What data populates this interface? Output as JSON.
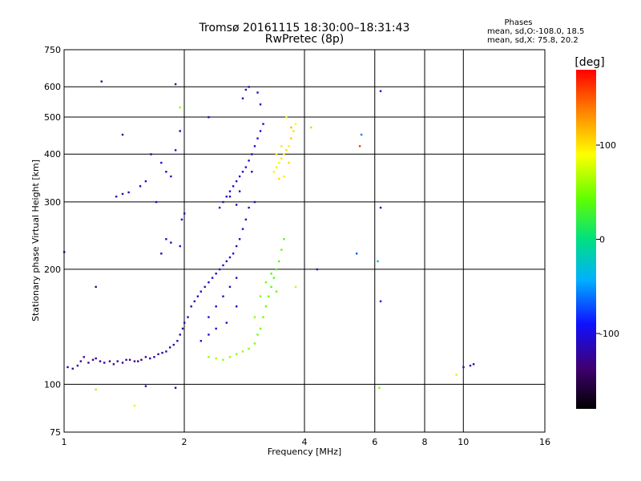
{
  "chart_data": {
    "type": "scatter",
    "title": "Tromsø 20161115 18:30:00–18:31:43",
    "subtitle": "RwPretec (8p)",
    "xlabel": "Frequency [MHz]",
    "ylabel": "Stationary phase Virtual Height [km]",
    "x_scale": "log",
    "y_scale": "log",
    "xlim": [
      1,
      16
    ],
    "ylim": [
      75,
      750
    ],
    "x_ticks": [
      1,
      2,
      4,
      6,
      8,
      10,
      16
    ],
    "x_tick_labels": [
      "1",
      "2",
      "4",
      "6",
      "8",
      "10",
      "16"
    ],
    "y_ticks": [
      75,
      100,
      200,
      300,
      400,
      500,
      600,
      750
    ],
    "y_tick_labels": [
      "75",
      "100",
      "200",
      "300",
      "400",
      "500",
      "600",
      "750"
    ],
    "grid": true,
    "info": {
      "heading": "Phases",
      "line1": "mean, sd,O:-108.0, 18.5",
      "line2": "mean, sd,X: 75.8, 20.2"
    },
    "colorbar": {
      "label": "[deg]",
      "range": [
        -180,
        180
      ],
      "ticks": [
        100,
        0,
        -100
      ],
      "tick_labels": [
        "100",
        "0",
        "-100"
      ]
    },
    "series": [
      {
        "points": [
          [
            1.02,
            111,
            -120
          ],
          [
            1.05,
            110,
            -125
          ],
          [
            1.08,
            112,
            -118
          ],
          [
            1.1,
            115,
            -122
          ],
          [
            1.12,
            118,
            -110
          ],
          [
            1.15,
            114,
            -130
          ],
          [
            1.18,
            116,
            -125
          ],
          [
            1.2,
            117,
            -128
          ],
          [
            1.23,
            115,
            -120
          ],
          [
            1.26,
            114,
            -118
          ],
          [
            1.3,
            115,
            -132
          ],
          [
            1.33,
            113,
            -126
          ],
          [
            1.36,
            115,
            -124
          ],
          [
            1.4,
            114,
            -120
          ],
          [
            1.43,
            116,
            -128
          ],
          [
            1.46,
            116,
            -122
          ],
          [
            1.5,
            115,
            -126
          ],
          [
            1.53,
            115,
            -124
          ],
          [
            1.56,
            116,
            -130
          ],
          [
            1.6,
            118,
            -120
          ],
          [
            1.64,
            117,
            -126
          ],
          [
            1.68,
            118,
            -122
          ],
          [
            1.72,
            120,
            -128
          ],
          [
            1.76,
            121,
            -118
          ],
          [
            1.8,
            122,
            -124
          ],
          [
            1.84,
            125,
            -126
          ],
          [
            1.88,
            127,
            -120
          ],
          [
            1.92,
            130,
            -116
          ],
          [
            1.95,
            135,
            -110
          ],
          [
            1.98,
            140,
            -118
          ],
          [
            2.0,
            145,
            -120
          ],
          [
            2.04,
            150,
            -112
          ],
          [
            2.08,
            160,
            -115
          ],
          [
            2.12,
            165,
            -108
          ],
          [
            2.16,
            170,
            -112
          ],
          [
            2.2,
            175,
            -105
          ],
          [
            2.25,
            180,
            -110
          ],
          [
            2.3,
            185,
            -108
          ],
          [
            2.35,
            190,
            -104
          ],
          [
            2.4,
            195,
            -110
          ],
          [
            2.45,
            200,
            -106
          ],
          [
            2.5,
            205,
            -102
          ],
          [
            2.55,
            210,
            -108
          ],
          [
            2.6,
            215,
            -104
          ],
          [
            2.65,
            220,
            -100
          ],
          [
            2.7,
            230,
            -110
          ],
          [
            2.75,
            240,
            -104
          ],
          [
            2.8,
            255,
            -100
          ],
          [
            2.85,
            270,
            -105
          ],
          [
            2.9,
            290,
            -110
          ],
          [
            2.3,
            150,
            -110
          ],
          [
            2.4,
            160,
            -106
          ],
          [
            2.5,
            170,
            -112
          ],
          [
            2.6,
            180,
            -108
          ],
          [
            2.7,
            190,
            -104
          ],
          [
            2.2,
            130,
            -100
          ],
          [
            2.3,
            135,
            -108
          ],
          [
            2.4,
            140,
            -112
          ],
          [
            2.55,
            145,
            -106
          ],
          [
            2.7,
            160,
            -102
          ]
        ]
      },
      {
        "points": [
          [
            2.45,
            290,
            -110
          ],
          [
            2.5,
            300,
            -108
          ],
          [
            2.55,
            310,
            -105
          ],
          [
            2.6,
            320,
            -106
          ],
          [
            2.65,
            330,
            -108
          ],
          [
            2.7,
            340,
            -104
          ],
          [
            2.75,
            350,
            -110
          ],
          [
            2.8,
            360,
            -106
          ],
          [
            2.85,
            370,
            -100
          ],
          [
            2.9,
            385,
            -104
          ],
          [
            2.95,
            400,
            -108
          ],
          [
            3.0,
            420,
            -102
          ],
          [
            3.05,
            440,
            -104
          ],
          [
            3.1,
            460,
            -100
          ],
          [
            3.15,
            480,
            -106
          ],
          [
            2.8,
            560,
            -112
          ],
          [
            2.85,
            590,
            -106
          ],
          [
            2.9,
            600,
            -110
          ],
          [
            3.05,
            580,
            -104
          ],
          [
            3.1,
            540,
            -108
          ],
          [
            2.6,
            310,
            -114
          ],
          [
            2.7,
            295,
            -118
          ],
          [
            2.75,
            320,
            -112
          ],
          [
            2.95,
            360,
            -116
          ],
          [
            3.0,
            300,
            -110
          ]
        ]
      },
      {
        "points": [
          [
            1.35,
            310,
            -112
          ],
          [
            1.4,
            315,
            -116
          ],
          [
            1.45,
            318,
            -110
          ],
          [
            1.55,
            330,
            -108
          ],
          [
            1.6,
            340,
            -114
          ],
          [
            1.65,
            400,
            -118
          ],
          [
            1.7,
            300,
            -110
          ],
          [
            1.75,
            380,
            -104
          ],
          [
            1.8,
            360,
            -112
          ],
          [
            1.85,
            350,
            -106
          ],
          [
            1.9,
            410,
            -100
          ],
          [
            1.95,
            460,
            -110
          ],
          [
            1.97,
            270,
            -102
          ],
          [
            2.0,
            280,
            -108
          ],
          [
            1.95,
            230,
            -104
          ],
          [
            1.85,
            235,
            -112
          ],
          [
            1.8,
            240,
            -106
          ],
          [
            1.75,
            220,
            -110
          ],
          [
            1.4,
            450,
            -114
          ]
        ]
      },
      {
        "points": [
          [
            2.3,
            118,
            60
          ],
          [
            2.4,
            117,
            65
          ],
          [
            2.5,
            116,
            58
          ],
          [
            2.6,
            118,
            62
          ],
          [
            2.7,
            120,
            55
          ],
          [
            2.8,
            122,
            60
          ],
          [
            2.9,
            124,
            58
          ],
          [
            3.0,
            128,
            52
          ],
          [
            3.05,
            135,
            50
          ],
          [
            3.1,
            140,
            48
          ],
          [
            3.15,
            150,
            46
          ],
          [
            3.2,
            160,
            44
          ],
          [
            3.25,
            170,
            42
          ],
          [
            3.3,
            180,
            40
          ],
          [
            3.35,
            190,
            38
          ],
          [
            3.4,
            200,
            36
          ],
          [
            3.45,
            210,
            40
          ],
          [
            3.5,
            225,
            44
          ],
          [
            3.55,
            240,
            38
          ],
          [
            3.1,
            170,
            52
          ],
          [
            3.2,
            185,
            46
          ],
          [
            3.3,
            195,
            40
          ],
          [
            3.4,
            175,
            44
          ],
          [
            3.0,
            150,
            56
          ]
        ]
      },
      {
        "points": [
          [
            3.35,
            360,
            80
          ],
          [
            3.4,
            370,
            95
          ],
          [
            3.45,
            380,
            85
          ],
          [
            3.5,
            390,
            100
          ],
          [
            3.55,
            400,
            90
          ],
          [
            3.6,
            410,
            105
          ],
          [
            3.65,
            420,
            95
          ],
          [
            3.7,
            440,
            110
          ],
          [
            3.75,
            460,
            100
          ],
          [
            3.8,
            480,
            92
          ],
          [
            3.6,
            500,
            88
          ],
          [
            3.55,
            350,
            96
          ],
          [
            3.45,
            345,
            102
          ],
          [
            3.7,
            470,
            115
          ],
          [
            3.5,
            420,
            98
          ],
          [
            3.4,
            400,
            86
          ],
          [
            3.65,
            380,
            104
          ]
        ]
      },
      {
        "points": [
          [
            1.24,
            620,
            -130
          ],
          [
            1.9,
            610,
            -120
          ],
          [
            1.95,
            530,
            60
          ],
          [
            2.3,
            500,
            -110
          ],
          [
            4.15,
            470,
            60
          ],
          [
            5.55,
            450,
            -60
          ],
          [
            6.2,
            585,
            -100
          ],
          [
            5.5,
            420,
            160
          ],
          [
            6.2,
            290,
            -110
          ],
          [
            6.1,
            210,
            -40
          ],
          [
            5.4,
            220,
            -70
          ],
          [
            4.3,
            200,
            -110
          ],
          [
            6.2,
            165,
            -90
          ],
          [
            10.0,
            111,
            -120
          ],
          [
            10.4,
            112,
            -110
          ],
          [
            10.6,
            113,
            -115
          ],
          [
            9.6,
            106,
            100
          ],
          [
            1.0,
            222,
            -118
          ],
          [
            1.2,
            180,
            -130
          ],
          [
            1.6,
            99,
            -110
          ],
          [
            1.2,
            97,
            60
          ],
          [
            1.9,
            98,
            -115
          ],
          [
            6.15,
            98,
            50
          ],
          [
            1.5,
            88,
            80
          ],
          [
            3.8,
            180,
            70
          ]
        ]
      }
    ]
  }
}
